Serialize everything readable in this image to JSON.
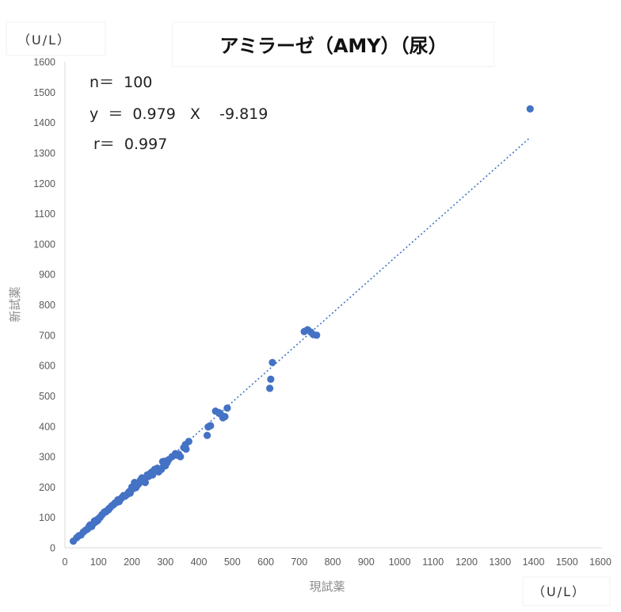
{
  "chart_data": {
    "type": "scatter",
    "title": "アミラーゼ（AMY）（尿）",
    "xlabel": "現試薬",
    "ylabel": "新試薬",
    "x_unit": "（U/L）",
    "y_unit": "（U/L）",
    "xlim": [
      0,
      1600
    ],
    "ylim": [
      0,
      1600
    ],
    "xticks": [
      0,
      100,
      200,
      300,
      400,
      500,
      600,
      700,
      800,
      900,
      1000,
      1100,
      1200,
      1300,
      1400,
      1500,
      1600
    ],
    "yticks": [
      0,
      100,
      200,
      300,
      400,
      500,
      600,
      700,
      800,
      900,
      1000,
      1100,
      1200,
      1300,
      1400,
      1500,
      1600
    ],
    "grid": false,
    "trendline": {
      "type": "linear",
      "slope": 0.979,
      "intercept": -9.819,
      "x_range": [
        28,
        1390
      ],
      "color": "#4472C4"
    },
    "stats": {
      "n_line": "n＝  100",
      "eq_line": "y  ＝  0.979   X    -9.819",
      "r_line": "r＝  0.997"
    },
    "marker_color": "#4472C4",
    "points": [
      [
        25,
        22
      ],
      [
        35,
        33
      ],
      [
        42,
        40
      ],
      [
        48,
        42
      ],
      [
        55,
        52
      ],
      [
        62,
        58
      ],
      [
        68,
        62
      ],
      [
        72,
        70
      ],
      [
        75,
        75
      ],
      [
        80,
        70
      ],
      [
        85,
        80
      ],
      [
        88,
        88
      ],
      [
        92,
        85
      ],
      [
        95,
        92
      ],
      [
        100,
        95
      ],
      [
        105,
        100
      ],
      [
        110,
        108
      ],
      [
        118,
        118
      ],
      [
        125,
        122
      ],
      [
        130,
        125
      ],
      [
        135,
        132
      ],
      [
        140,
        138
      ],
      [
        145,
        142
      ],
      [
        150,
        148
      ],
      [
        155,
        150
      ],
      [
        158,
        158
      ],
      [
        162,
        152
      ],
      [
        165,
        160
      ],
      [
        170,
        165
      ],
      [
        175,
        172
      ],
      [
        180,
        170
      ],
      [
        185,
        175
      ],
      [
        190,
        182
      ],
      [
        195,
        180
      ],
      [
        200,
        200
      ],
      [
        205,
        195
      ],
      [
        208,
        215
      ],
      [
        212,
        198
      ],
      [
        215,
        205
      ],
      [
        220,
        210
      ],
      [
        225,
        222
      ],
      [
        230,
        230
      ],
      [
        235,
        218
      ],
      [
        240,
        215
      ],
      [
        250,
        235
      ],
      [
        255,
        245
      ],
      [
        260,
        250
      ],
      [
        262,
        240
      ],
      [
        268,
        258
      ],
      [
        272,
        255
      ],
      [
        280,
        250
      ],
      [
        288,
        258
      ],
      [
        295,
        270
      ],
      [
        298,
        285
      ],
      [
        300,
        270
      ],
      [
        305,
        280
      ],
      [
        310,
        290
      ],
      [
        320,
        300
      ],
      [
        330,
        310
      ],
      [
        335,
        305
      ],
      [
        340,
        308
      ],
      [
        345,
        300
      ],
      [
        355,
        330
      ],
      [
        360,
        340
      ],
      [
        362,
        325
      ],
      [
        370,
        350
      ],
      [
        425,
        370
      ],
      [
        428,
        398
      ],
      [
        435,
        402
      ],
      [
        450,
        450
      ],
      [
        460,
        445
      ],
      [
        465,
        440
      ],
      [
        472,
        428
      ],
      [
        478,
        432
      ],
      [
        485,
        460
      ],
      [
        612,
        525
      ],
      [
        615,
        555
      ],
      [
        620,
        610
      ],
      [
        715,
        712
      ],
      [
        725,
        718
      ],
      [
        735,
        710
      ],
      [
        742,
        702
      ],
      [
        752,
        700
      ],
      [
        1390,
        1445
      ],
      [
        98,
        90
      ],
      [
        102,
        98
      ],
      [
        112,
        110
      ],
      [
        122,
        118
      ],
      [
        132,
        130
      ],
      [
        142,
        140
      ],
      [
        152,
        148
      ],
      [
        168,
        162
      ],
      [
        178,
        170
      ],
      [
        192,
        185
      ],
      [
        198,
        190
      ],
      [
        218,
        208
      ],
      [
        228,
        222
      ],
      [
        246,
        240
      ],
      [
        276,
        262
      ],
      [
        292,
        284
      ]
    ]
  }
}
